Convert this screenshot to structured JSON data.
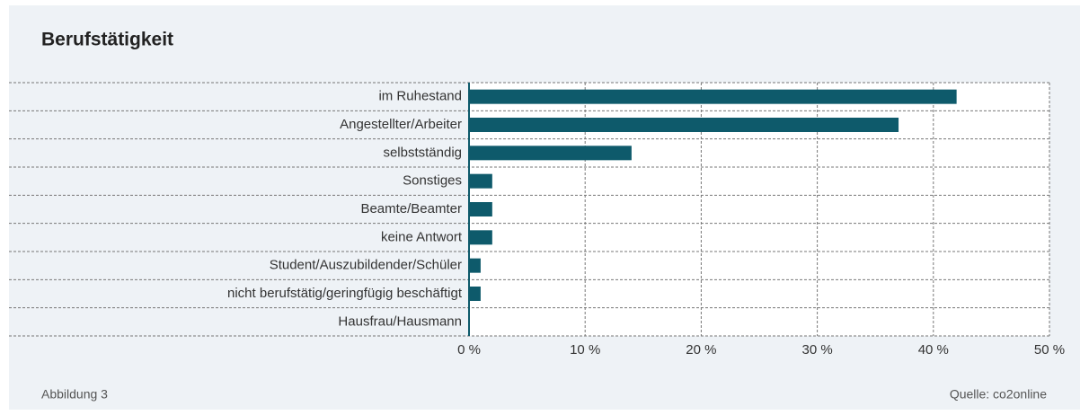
{
  "chart_data": {
    "type": "bar",
    "orientation": "horizontal",
    "title": "Berufstätigkeit",
    "categories": [
      "im Ruhestand",
      "Angestellter/Arbeiter",
      "selbstständig",
      "Sonstiges",
      "Beamte/Beamter",
      "keine Antwort",
      "Student/Auszubildender/Schüler",
      "nicht berufstätig/geringfügig beschäftigt",
      "Hausfrau/Hausmann"
    ],
    "values": [
      42,
      37,
      14,
      2,
      2,
      2,
      1,
      1,
      0
    ],
    "color": "#0e5a6b",
    "xlim": [
      0,
      50
    ],
    "xticks": [
      {
        "value": 0,
        "label": "0 %"
      },
      {
        "value": 10,
        "label": "10 %"
      },
      {
        "value": 20,
        "label": "20 %"
      },
      {
        "value": 30,
        "label": "30 %"
      },
      {
        "value": 40,
        "label": "40 %"
      },
      {
        "value": 50,
        "label": "50 %"
      }
    ],
    "grid": true,
    "figure_label": "Abbildung 3",
    "source": "Quelle: co2online"
  }
}
